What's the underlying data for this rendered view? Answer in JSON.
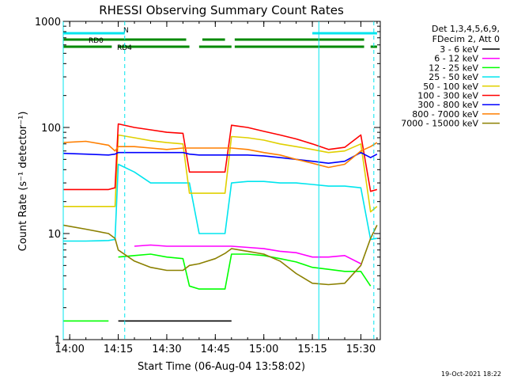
{
  "chart_data": {
    "type": "line",
    "title": "RHESSI Observing Summary Count Rates",
    "xlabel": "Start Time (06-Aug-04 13:58:02)",
    "ylabel": "Count Rate (s⁻¹ detector⁻¹)",
    "yscale": "log",
    "ylim": [
      1,
      1000
    ],
    "xlim": [
      "13:58",
      "15:36"
    ],
    "x_ticks": [
      "14:00",
      "14:15",
      "14:30",
      "14:45",
      "15:00",
      "15:15",
      "15:30"
    ],
    "y_ticks": [
      "1",
      "10",
      "100",
      "1000"
    ],
    "legend_header": [
      "Det 1,3,4,5,6,9,",
      "FDecim 2, Att 0"
    ],
    "legend_position": "right",
    "footer": "19-Oct-2021 18:22",
    "flags": [
      {
        "label": "N",
        "color": "#00e5ee",
        "intervals": [
          [
            "13:58",
            "14:17"
          ],
          [
            "15:15",
            "15:35"
          ]
        ]
      },
      {
        "label": "RD0",
        "color": "#008a00",
        "intervals": [
          [
            "13:58",
            "14:36"
          ],
          [
            "14:41",
            "14:48"
          ],
          [
            "14:51",
            "15:31"
          ]
        ]
      },
      {
        "label": "RD4",
        "color": "#008a00",
        "intervals": [
          [
            "13:58",
            "14:13"
          ],
          [
            "14:15",
            "14:37"
          ],
          [
            "14:40",
            "14:50"
          ],
          [
            "14:51",
            "15:31"
          ],
          [
            "15:33",
            "15:35"
          ]
        ]
      }
    ],
    "markers": [
      {
        "time": "13:58",
        "color": "#00e5ee",
        "style": "solid"
      },
      {
        "time": "14:17",
        "color": "#00e5ee",
        "style": "dashed"
      },
      {
        "time": "15:17",
        "color": "#00e5ee",
        "style": "solid"
      },
      {
        "time": "15:34",
        "color": "#00e5ee",
        "style": "dashed"
      }
    ],
    "x": [
      "13:58",
      "14:05",
      "14:12",
      "14:14",
      "14:15",
      "14:20",
      "14:25",
      "14:30",
      "14:35",
      "14:37",
      "14:40",
      "14:45",
      "14:48",
      "14:50",
      "14:55",
      "15:00",
      "15:05",
      "15:10",
      "15:15",
      "15:20",
      "15:25",
      "15:30",
      "15:33",
      "15:35"
    ],
    "series": [
      {
        "name": "3 - 6 keV",
        "color": "#000000",
        "values": [
          null,
          null,
          null,
          null,
          1.5,
          1.5,
          1.5,
          1.5,
          1.5,
          1.5,
          1.5,
          1.5,
          1.5,
          1.5,
          null,
          null,
          null,
          null,
          null,
          null,
          null,
          null,
          null,
          null
        ]
      },
      {
        "name": "6 - 12 keV",
        "color": "#ff00ff",
        "values": [
          null,
          null,
          null,
          null,
          null,
          7.6,
          7.8,
          7.6,
          7.6,
          7.6,
          7.6,
          7.6,
          7.6,
          7.6,
          7.4,
          7.2,
          6.8,
          6.6,
          6.0,
          6.0,
          6.2,
          5.2,
          null,
          null
        ]
      },
      {
        "name": "12 - 25 keV",
        "color": "#00ff00",
        "values": [
          1.5,
          1.5,
          1.5,
          null,
          6.0,
          6.2,
          6.4,
          6.0,
          5.8,
          3.2,
          3.0,
          3.0,
          3.0,
          6.4,
          6.4,
          6.2,
          5.8,
          5.4,
          4.8,
          4.6,
          4.4,
          4.4,
          3.2,
          null
        ]
      },
      {
        "name": "25 - 50 keV",
        "color": "#00e5ee",
        "values": [
          8.5,
          8.5,
          8.6,
          8.8,
          45,
          38,
          30,
          30,
          30,
          30,
          10,
          10,
          10,
          30,
          31,
          31,
          30,
          30,
          29,
          28,
          28,
          27,
          8.8,
          9.0
        ]
      },
      {
        "name": "50 - 100 keV",
        "color": "#e0d000",
        "values": [
          18,
          18,
          18,
          18,
          85,
          80,
          75,
          72,
          70,
          24,
          24,
          24,
          24,
          82,
          80,
          76,
          70,
          66,
          62,
          58,
          60,
          70,
          16,
          18
        ]
      },
      {
        "name": "100 - 300 keV",
        "color": "#ff0000",
        "values": [
          26,
          26,
          26,
          27,
          108,
          100,
          95,
          90,
          88,
          38,
          38,
          38,
          38,
          105,
          100,
          92,
          85,
          78,
          70,
          62,
          65,
          85,
          25,
          26
        ]
      },
      {
        "name": "300 - 800 keV",
        "color": "#0000ff",
        "values": [
          57,
          56,
          55,
          56,
          58,
          58,
          58,
          58,
          58,
          56,
          55,
          55,
          55,
          55,
          55,
          54,
          52,
          50,
          48,
          46,
          48,
          58,
          52,
          56
        ]
      },
      {
        "name": "800 - 7000 keV",
        "color": "#ff7f00",
        "values": [
          72,
          74,
          68,
          60,
          66,
          66,
          64,
          62,
          64,
          64,
          64,
          64,
          64,
          64,
          62,
          58,
          55,
          50,
          46,
          42,
          45,
          60,
          66,
          72
        ]
      },
      {
        "name": "7000 - 15000 keV",
        "color": "#8b8000",
        "values": [
          12,
          11,
          10,
          9,
          7.0,
          5.5,
          4.8,
          4.5,
          4.5,
          5.0,
          5.2,
          5.8,
          6.5,
          7.2,
          6.8,
          6.4,
          5.5,
          4.2,
          3.4,
          3.3,
          3.4,
          5.0,
          9.0,
          12
        ]
      }
    ]
  }
}
